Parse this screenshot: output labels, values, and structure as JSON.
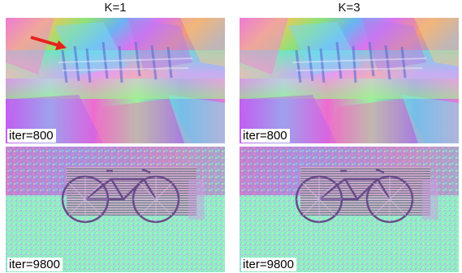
{
  "columns": [
    {
      "title": "K=1"
    },
    {
      "title": "K=3"
    }
  ],
  "rows": [
    {
      "label": "iter=800"
    },
    {
      "label": "iter=9800"
    }
  ],
  "colors": {
    "annotation_arrow": "#e5231b",
    "normal_base": "#7ff0c0"
  }
}
